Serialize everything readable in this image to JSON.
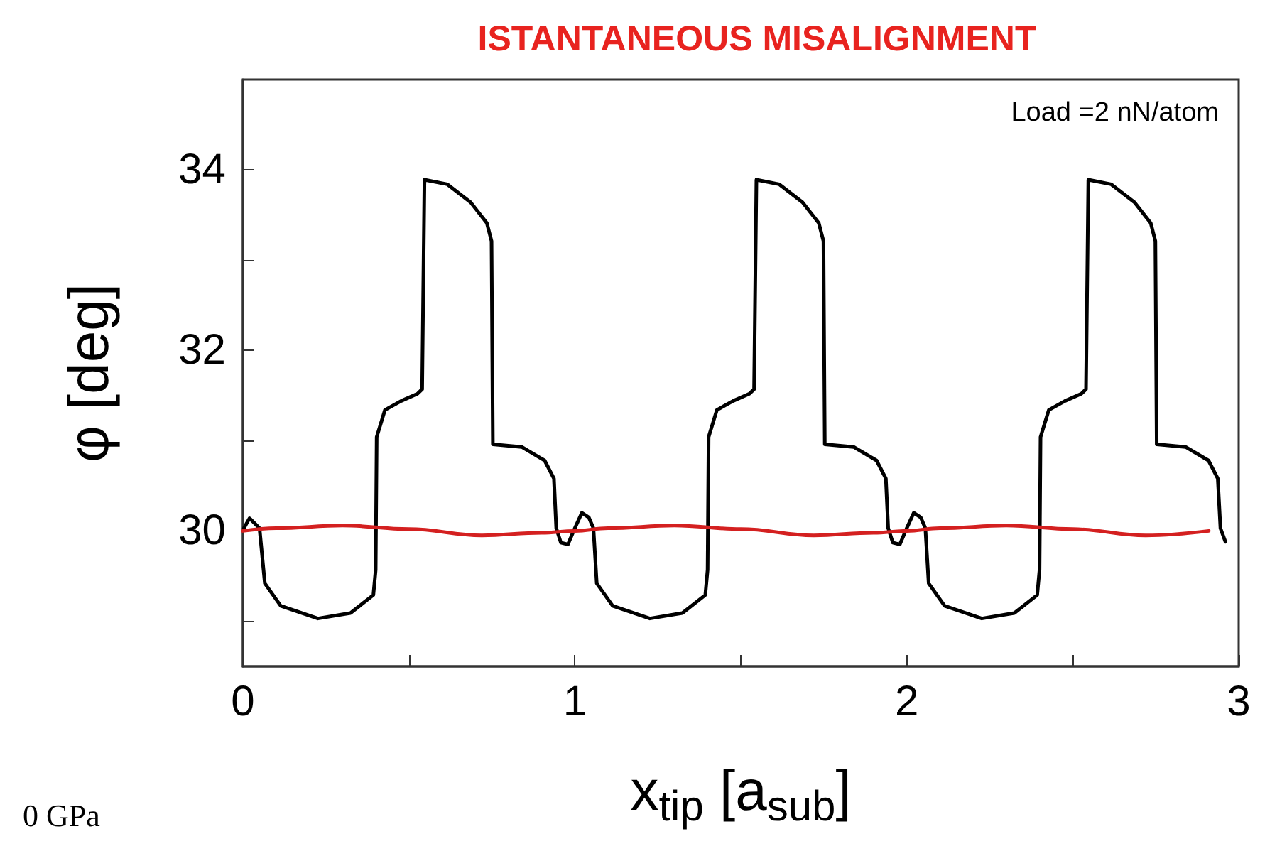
{
  "chart_data": {
    "type": "line",
    "title": "ISTANTANEOUS MISALIGNMENT",
    "xlabel": "x$_{tip}$ [a$_{sub}$]",
    "ylabel": "φ [deg]",
    "annotations": [
      "Load =2 nN/atom",
      "0 GPa"
    ],
    "xlim": [
      0,
      3
    ],
    "xticks": [
      0,
      {
        "value": 0.5,
        "label": null
      },
      1,
      {
        "value": 1.5,
        "label": null
      },
      2,
      {
        "value": 2.5,
        "label": null
      },
      3
    ],
    "ylim": [
      28.5,
      35
    ],
    "yticks": [
      {
        "value": 29,
        "label": null
      },
      30,
      {
        "value": 31,
        "label": null
      },
      32,
      {
        "value": 33,
        "label": null
      },
      34
    ],
    "grid": false,
    "marker": "none",
    "line_style": "solid",
    "series": [
      {
        "color": "#000000",
        "x": [
          0.003,
          0.02,
          0.05,
          0.066,
          0.114,
          0.226,
          0.324,
          0.393,
          0.4,
          0.403,
          0.428,
          0.477,
          0.526,
          0.54,
          0.547,
          0.616,
          0.686,
          0.735,
          0.749,
          0.753,
          0.84,
          0.909,
          0.937,
          0.944,
          0.958,
          0.979,
          1.0,
          1.021,
          1.042,
          1.056,
          1.066,
          1.114,
          1.226,
          1.324,
          1.393,
          1.4,
          1.403,
          1.428,
          1.477,
          1.526,
          1.54,
          1.547,
          1.616,
          1.686,
          1.735,
          1.749,
          1.753,
          1.84,
          1.909,
          1.937,
          1.944,
          1.958,
          1.979,
          2.0,
          2.021,
          2.042,
          2.056,
          2.066,
          2.114,
          2.226,
          2.324,
          2.393,
          2.4,
          2.403,
          2.428,
          2.477,
          2.526,
          2.54,
          2.547,
          2.616,
          2.686,
          2.735,
          2.749,
          2.753,
          2.84,
          2.909,
          2.937,
          2.945,
          2.96
        ],
        "values": [
          30.03,
          30.14,
          30.03,
          29.42,
          29.17,
          29.03,
          29.09,
          29.29,
          29.57,
          31.04,
          31.34,
          31.44,
          31.52,
          31.57,
          33.89,
          33.84,
          33.64,
          33.41,
          33.21,
          30.96,
          30.93,
          30.78,
          30.58,
          30.03,
          29.87,
          29.85,
          30.03,
          30.2,
          30.15,
          30.03,
          29.42,
          29.17,
          29.03,
          29.09,
          29.29,
          29.57,
          31.04,
          31.34,
          31.44,
          31.52,
          31.57,
          33.89,
          33.84,
          33.64,
          33.41,
          33.21,
          30.96,
          30.93,
          30.78,
          30.58,
          30.03,
          29.87,
          29.85,
          30.03,
          30.2,
          30.15,
          30.03,
          29.42,
          29.17,
          29.03,
          29.09,
          29.29,
          29.57,
          31.04,
          31.34,
          31.44,
          31.52,
          31.57,
          33.89,
          33.84,
          33.64,
          33.41,
          33.21,
          30.96,
          30.93,
          30.78,
          30.58,
          30.03,
          29.88
        ]
      },
      {
        "color": "#d42020",
        "x": [
          0,
          0.1,
          0.3,
          0.5,
          0.72,
          0.9,
          1.0,
          1.1,
          1.3,
          1.5,
          1.72,
          1.9,
          2.0,
          2.1,
          2.3,
          2.5,
          2.72,
          2.91
        ],
        "values": [
          30.0,
          30.03,
          30.06,
          30.02,
          29.95,
          29.98,
          30.0,
          30.03,
          30.06,
          30.02,
          29.95,
          29.98,
          30.0,
          30.03,
          30.06,
          30.02,
          29.95,
          30.0
        ]
      }
    ]
  }
}
